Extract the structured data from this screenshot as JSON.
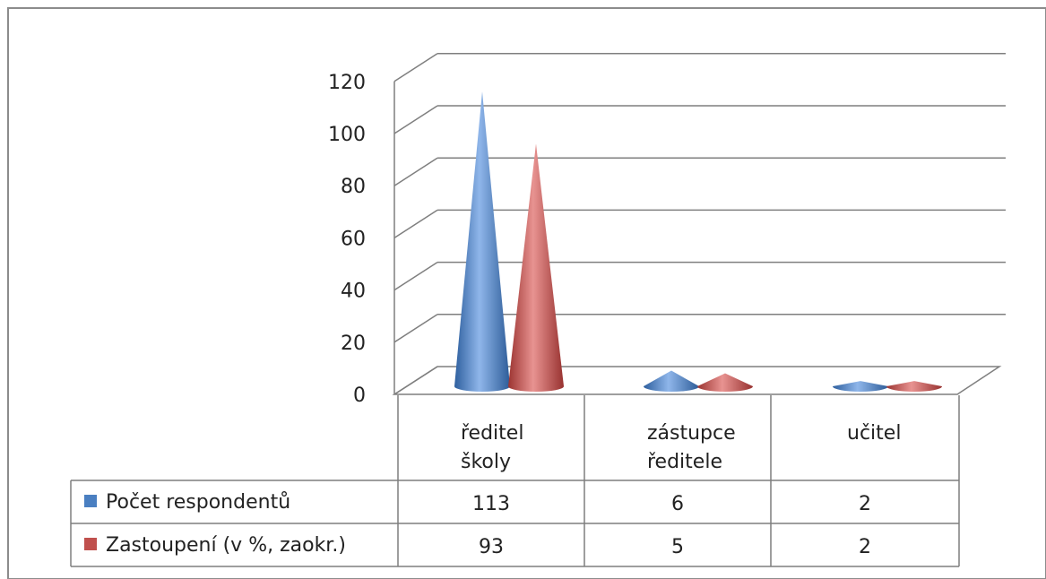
{
  "colors": {
    "blue": "#4a7fc1",
    "red": "#c0504d",
    "grid": "#7f7f7f",
    "border": "#8c8c8c"
  },
  "chart_data": {
    "type": "bar",
    "style": "3d-cone",
    "categories": [
      [
        "ředitel",
        "školy"
      ],
      [
        "zástupce",
        "ředitele"
      ],
      [
        "učitel"
      ]
    ],
    "series": [
      {
        "name": "Počet respondentů",
        "values": [
          113,
          6,
          2
        ],
        "color": "#4a7fc1"
      },
      {
        "name": "Zastoupení (v %, zaokr.)",
        "values": [
          93,
          5,
          2
        ],
        "color": "#c0504d"
      }
    ],
    "yticks": [
      0,
      20,
      40,
      60,
      80,
      100,
      120
    ],
    "ylim": [
      0,
      120
    ],
    "grid": true,
    "legend": "data-table"
  }
}
